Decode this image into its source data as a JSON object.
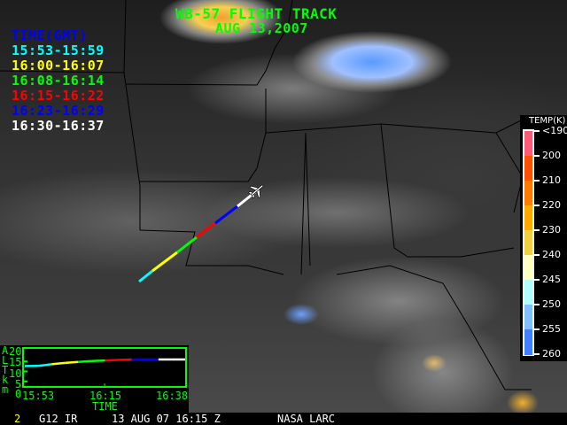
{
  "title": "WB-57 FLIGHT TRACK",
  "date": "AUG 13,2007",
  "legend": {
    "header": {
      "label": "TIME(GMT)",
      "color": "#0000ff"
    },
    "items": [
      {
        "label": "15:53-15:59",
        "color": "#00ffff"
      },
      {
        "label": "16:00-16:07",
        "color": "#ffff00"
      },
      {
        "label": "16:08-16:14",
        "color": "#00ff00"
      },
      {
        "label": "16:15-16:22",
        "color": "#ff0000"
      },
      {
        "label": "16:23-16:29",
        "color": "#0000ff"
      },
      {
        "label": "16:30-16:37",
        "color": "#ffffff"
      }
    ]
  },
  "colorbar": {
    "title": "TEMP(K)",
    "labels": [
      "<190",
      "200",
      "210",
      "220",
      "230",
      "240",
      "245",
      "250",
      "255",
      "260"
    ],
    "colors": [
      "#ff5a78",
      "#ff5000",
      "#ff7a00",
      "#ffaa00",
      "#f0d040",
      "#ffffc0",
      "#b0ffff",
      "#80c0ff",
      "#4080ff"
    ]
  },
  "altitude_plot": {
    "ylabel": [
      "A",
      "L",
      "T",
      "k",
      "m"
    ],
    "yticks": [
      "20",
      "15",
      "10",
      "5",
      "0"
    ],
    "xticks": [
      "15:53",
      "16:15",
      "16:38"
    ],
    "xlabel": "TIME",
    "ylim": [
      0,
      20
    ],
    "series_km": [
      12.7,
      12.8,
      13.6,
      14.3,
      14.8,
      15.2,
      15.5,
      15.8,
      16.0,
      16.0,
      16.0,
      16.0,
      16.0
    ]
  },
  "status_bar": {
    "frame": "2",
    "sensor": "G12 IR",
    "datetime": "13 AUG 07 16:15 Z",
    "source": "NASA LARC"
  }
}
